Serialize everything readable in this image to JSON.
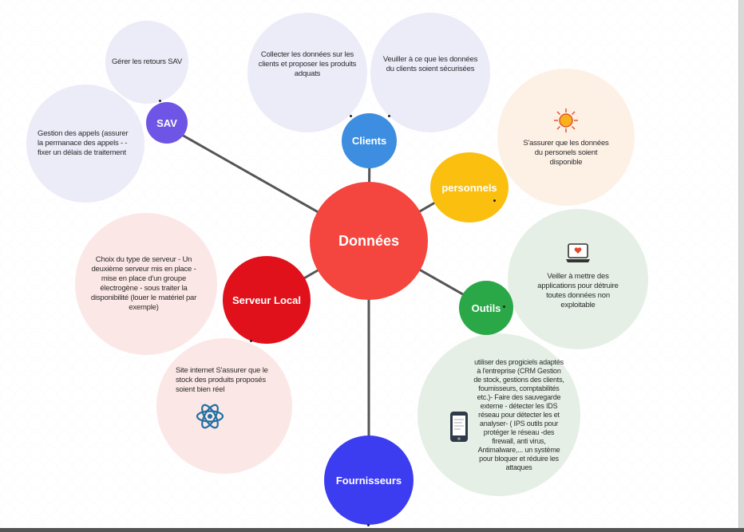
{
  "center": {
    "label": "Données",
    "color": "#f5453f"
  },
  "nodes": {
    "sav": {
      "label": "SAV",
      "color": "#6f55e6"
    },
    "clients": {
      "label": "Clients",
      "color": "#3d8de0"
    },
    "personnels": {
      "label": "personnels",
      "color": "#fbbf0f"
    },
    "outils": {
      "label": "Outils",
      "color": "#2aa848"
    },
    "fournisseurs": {
      "label": "Fournisseurs",
      "color": "#3c3cf0"
    },
    "serveur": {
      "label": "Serveur Local",
      "color": "#e0111a"
    }
  },
  "bubbles": {
    "sav_retours": "Gérer les retours SAV",
    "sav_appels": "Gestion des appels (assurer la permanace des appels - - fixer un délais de traitement",
    "clients_collecter": "Collecter les données sur les clients et proposer les produits adquats",
    "clients_securite": "Veuiller à ce que les données du clients soient sécurisées",
    "personnels_dispo": "S'assurer que les données du personels soient disponible",
    "outils_applications": "Veiller à mettre des applications pour détruire toutes données non exploitable",
    "outils_progiciels": "utiliser des progiciels adaptés à l'entreprise (CRM Gestion de stock, gestions des clients, fournisseurs, comptabilités etc.)- Faire des sauvegarde externe - détecter les IDS réseau pour détecter les et analyser- ( IPS outils pour protéger le réseau -des firewall, anti virus, Antimalware,... un système pour bloquer et réduire les attaques",
    "serveur_choix": "Choix du type de serveur - Un deuxième serveur mis en place - mise en place d'un groupe électrogène - sous traiter la disponibilité (louer le matériel par exemple)",
    "fournisseurs_site": "Site internet S'assurer que le stock des produits proposés soient bien réel"
  },
  "colors": {
    "lavender": "#ecebf8",
    "peach": "#fdf1e6",
    "mint": "#e6efe6",
    "pink": "#fbe7e6",
    "line": "#555555"
  },
  "icons": [
    "sun-icon",
    "laptop-heart-icon",
    "phone-icon",
    "atom-icon"
  ]
}
